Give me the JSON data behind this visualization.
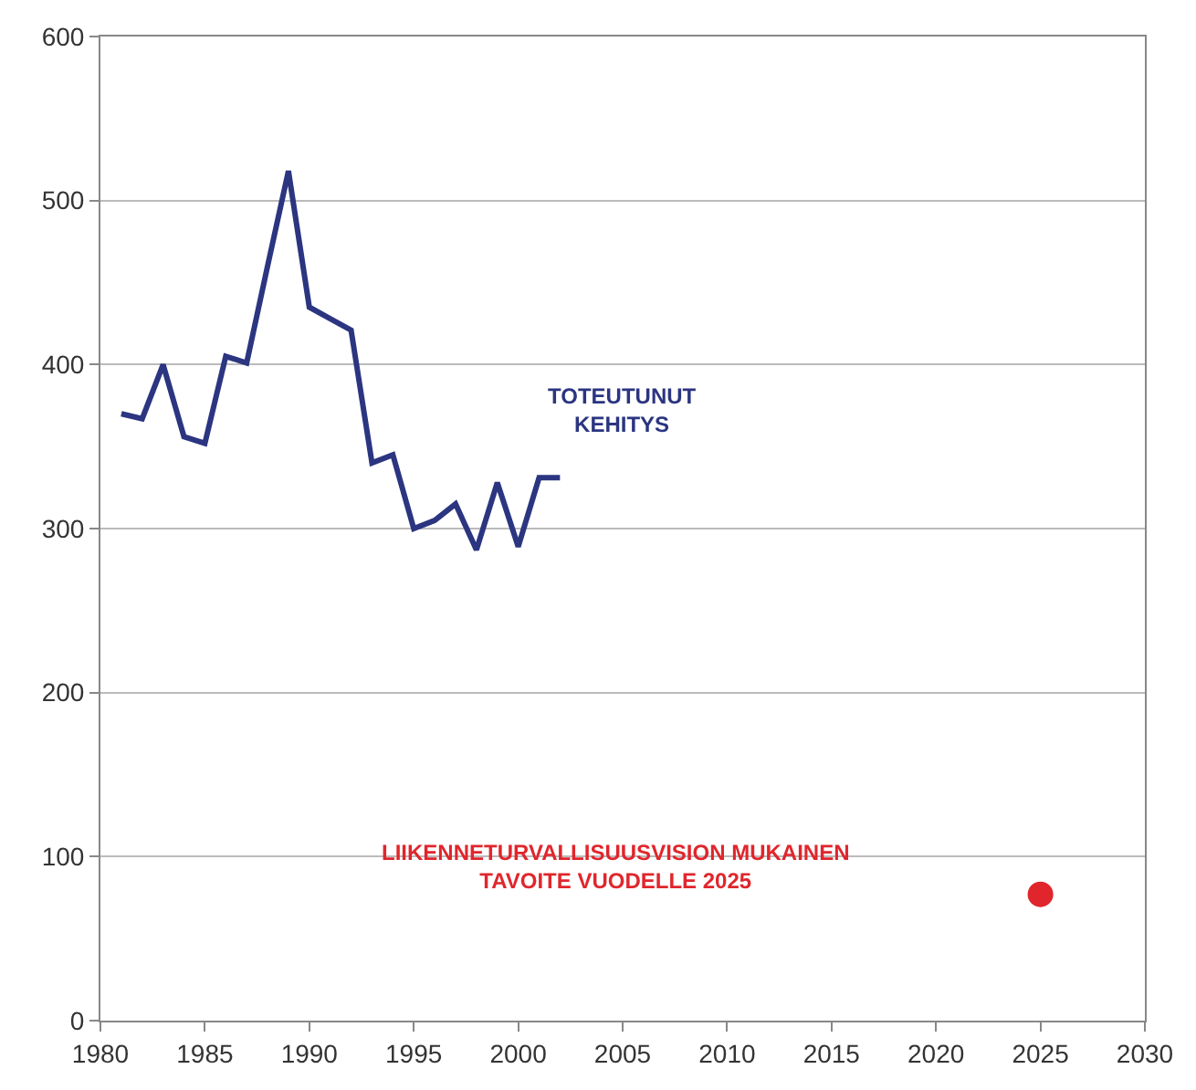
{
  "chart_data": {
    "type": "line",
    "xlim": [
      1980,
      2030
    ],
    "xticks": [
      1980,
      1985,
      1990,
      1995,
      2000,
      2005,
      2010,
      2015,
      2020,
      2025,
      2030
    ],
    "ylim": [
      0,
      600
    ],
    "yticks": [
      0,
      100,
      200,
      300,
      400,
      500,
      600
    ],
    "grid": "y",
    "series": [
      {
        "color": "#2b3580",
        "marker": "none",
        "x": [
          1981,
          1982,
          1983,
          1984,
          1985,
          1986,
          1987,
          1988,
          1989,
          1990,
          1991,
          1992,
          1993,
          1994,
          1995,
          1996,
          1997,
          1998,
          1999,
          2000,
          2001,
          2002
        ],
        "values": [
          370,
          367,
          400,
          356,
          352,
          405,
          401,
          460,
          518,
          435,
          428,
          421,
          340,
          345,
          300,
          305,
          315,
          287,
          328,
          289,
          331,
          331
        ]
      },
      {
        "type": "scatter",
        "color": "#e0262c",
        "marker": "circle",
        "x": [
          2025
        ],
        "values": [
          77
        ]
      }
    ],
    "annotations": [
      "TOTEUTUNUT\nKEHITYS",
      "LIIKENNETURVALLISUUSVISION MUKAINEN\nTAVOITE VUODELLE 2025"
    ]
  }
}
